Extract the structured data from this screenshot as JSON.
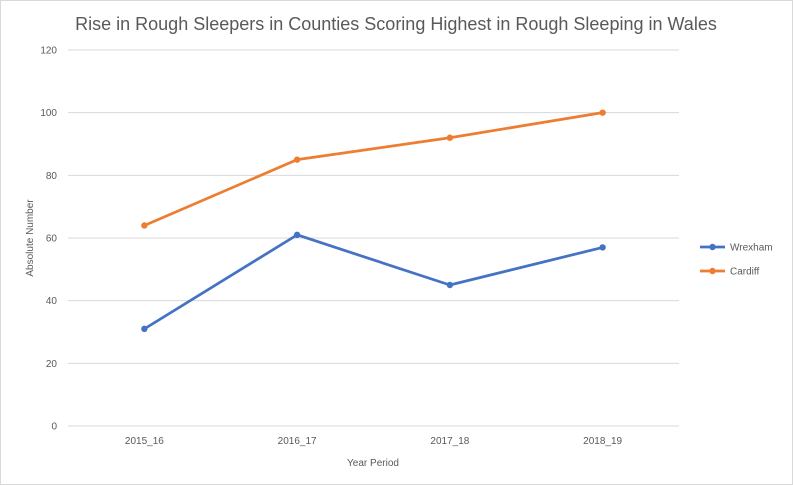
{
  "chart_data": {
    "type": "line",
    "title": "Rise in Rough Sleepers in Counties Scoring Highest in Rough Sleeping in Wales",
    "xlabel": "Year Period",
    "ylabel": "Absolute Number",
    "categories": [
      "2015_16",
      "2016_17",
      "2017_18",
      "2018_19"
    ],
    "ylim": [
      0,
      120
    ],
    "yticks": [
      0,
      20,
      40,
      60,
      80,
      100,
      120
    ],
    "grid": true,
    "legend_position": "right",
    "series": [
      {
        "name": "Wrexham",
        "values": [
          31,
          61,
          45,
          57
        ],
        "color": "#4472c4"
      },
      {
        "name": "Cardiff",
        "values": [
          64,
          85,
          92,
          100
        ],
        "color": "#ed7d31"
      }
    ]
  }
}
